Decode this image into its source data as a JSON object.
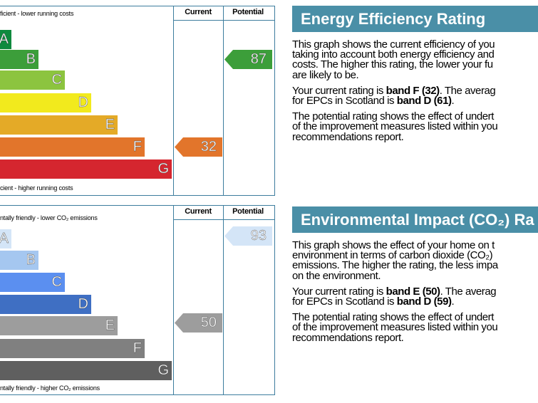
{
  "graphs": [
    {
      "top_caption": "ficient - lower running costs",
      "bottom_caption": "cient - higher running costs",
      "columns": [
        "Current",
        "Potential"
      ],
      "bands": [
        {
          "letter": "A",
          "color": "#0f8a3e"
        },
        {
          "letter": "B",
          "color": "#3c9e3a"
        },
        {
          "letter": "C",
          "color": "#8cc43f"
        },
        {
          "letter": "D",
          "color": "#f2ea1d"
        },
        {
          "letter": "E",
          "color": "#e4aa27"
        },
        {
          "letter": "F",
          "color": "#e2752b"
        },
        {
          "letter": "G",
          "color": "#d5262f"
        }
      ],
      "current": 32,
      "current_color": "#e2752b",
      "potential": 87,
      "potential_color": "#3c9e3a"
    },
    {
      "top_caption": "ntally friendly - lower CO₂ emissions",
      "bottom_caption": "ntally friendly - higher CO₂ emissions",
      "columns": [
        "Current",
        "Potential"
      ],
      "bands": [
        {
          "letter": "A",
          "color": "#d4e5f7"
        },
        {
          "letter": "B",
          "color": "#a5c7f0"
        },
        {
          "letter": "C",
          "color": "#5b8ff0"
        },
        {
          "letter": "D",
          "color": "#3f6fc3"
        },
        {
          "letter": "E",
          "color": "#9d9d9d"
        },
        {
          "letter": "F",
          "color": "#808080"
        },
        {
          "letter": "G",
          "color": "#5f5f5f"
        }
      ],
      "current": 50,
      "current_color": "#9d9d9d",
      "potential": 93,
      "potential_color": "#d4e5f7"
    }
  ],
  "panels": [
    {
      "title": "Energy Efficiency Rating",
      "paragraphs": [
        [
          [
            "This graph shows the current efficiency of you"
          ],
          [
            "taking into account both energy efficiency and"
          ],
          [
            "costs. The higher this rating, the lower your fu"
          ],
          [
            "are likely to be."
          ]
        ],
        [
          [
            "Your current rating is ",
            {
              "text": "band F (32)",
              "bold": true
            },
            ". The averag"
          ],
          [
            "for EPCs in Scotland is ",
            {
              "text": "band D (61)",
              "bold": true
            },
            "."
          ]
        ],
        [
          [
            "The potential rating shows the effect of undert"
          ],
          [
            "of the improvement measures listed within you"
          ],
          [
            "recommendations report."
          ]
        ]
      ]
    },
    {
      "title": "Environmental Impact (CO₂) Ra",
      "paragraphs": [
        [
          [
            "This graph shows the effect of your home on t"
          ],
          [
            "environment in terms of carbon dioxide (CO₂)"
          ],
          [
            "emissions. The higher the rating, the less impa"
          ],
          [
            "on the environment."
          ]
        ],
        [
          [
            "Your current rating is ",
            {
              "text": "band E (50)",
              "bold": true
            },
            ". The averag"
          ],
          [
            "for EPCs in Scotland is ",
            {
              "text": "band D (59)",
              "bold": true
            },
            "."
          ]
        ],
        [
          [
            "The potential rating shows the effect of undert"
          ],
          [
            "of the improvement measures listed within you"
          ],
          [
            "recommendations report."
          ]
        ]
      ]
    }
  ]
}
